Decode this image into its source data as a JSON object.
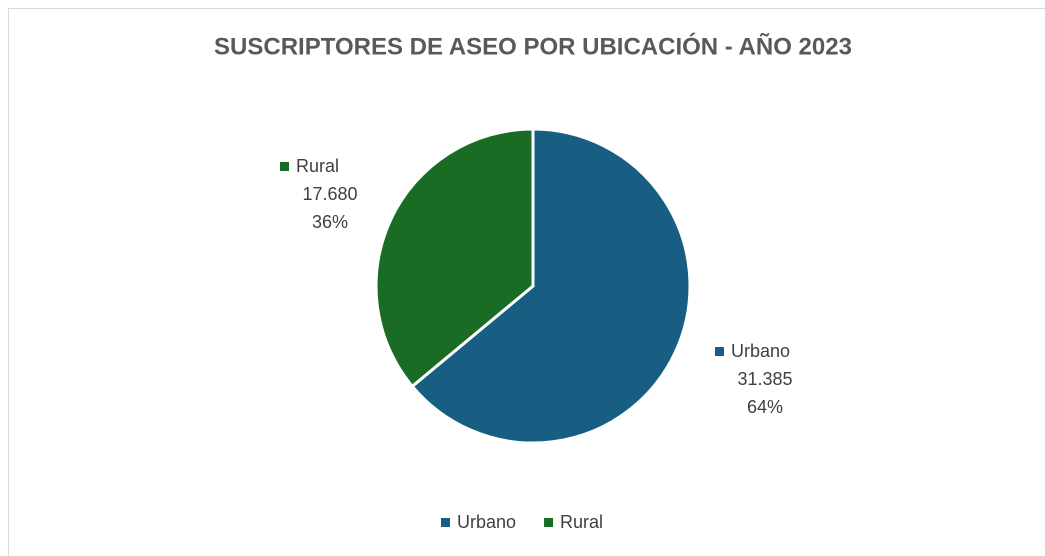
{
  "chart_data": {
    "type": "pie",
    "title": "SUSCRIPTORES DE ASEO POR UBICACIÓN - AÑO 2023",
    "categories": [
      "Urbano",
      "Rural"
    ],
    "values": [
      31385,
      17680
    ],
    "value_labels": [
      "31.385",
      "17.680"
    ],
    "percent_labels": [
      "64%",
      "36%"
    ],
    "colors": [
      "#175e82",
      "#1a6b24"
    ],
    "legend": "bottom"
  }
}
